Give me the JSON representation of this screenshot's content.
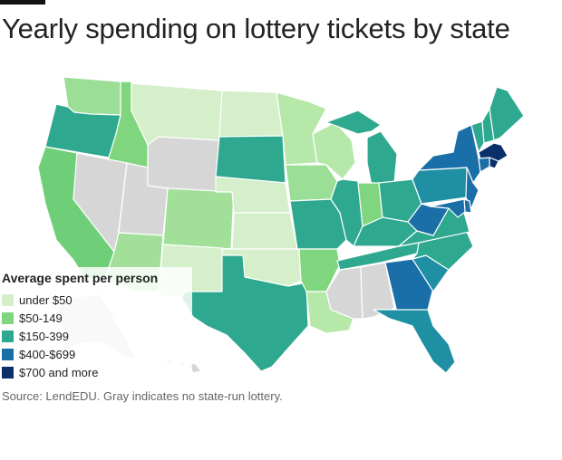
{
  "title": "Yearly spending on lottery tickets by state",
  "source": "Source: LendEDU. Gray indicates no state-run lottery.",
  "legend": {
    "title": "Average spent per person",
    "items": [
      {
        "label": "under $50",
        "color": "#d4efc9"
      },
      {
        "label": "$50-149",
        "color": "#7fd67f"
      },
      {
        "label": "$150-399",
        "color": "#2ea88f"
      },
      {
        "label": "$400-$699",
        "color": "#1a6fa8"
      },
      {
        "label": "$700 and more",
        "color": "#0b2f6b"
      }
    ]
  },
  "no_lottery_color": "#d6d6d6",
  "states": {
    "WA": "#9bde95",
    "OR": "#2ea88f",
    "CA": "#6fcf78",
    "ID": "#7fd67f",
    "NV": "#d6d6d6",
    "UT": "#d6d6d6",
    "AZ": "#a2e09a",
    "MT": "#d4efc9",
    "WY": "#d6d6d6",
    "CO": "#a2e09a",
    "NM": "#d4efc9",
    "ND": "#d4efc9",
    "SD": "#2ea88f",
    "NE": "#d4efc9",
    "KS": "#d4efc9",
    "OK": "#d4efc9",
    "TX": "#2ea88f",
    "MN": "#b6e8aa",
    "IA": "#9bde95",
    "MO": "#2ea88f",
    "AR": "#7fd67f",
    "LA": "#b6e8aa",
    "WI": "#b6e8aa",
    "IL": "#2ea88f",
    "MS": "#d6d6d6",
    "AL": "#d6d6d6",
    "MI": "#2ea88f",
    "IN": "#7fd67f",
    "KY": "#2ea88f",
    "TN": "#2ea88f",
    "OH": "#2ea88f",
    "GA": "#1a6fa8",
    "FL": "#1f8fa3",
    "SC": "#1f8fa3",
    "NC": "#2ea88f",
    "VA": "#2ea88f",
    "WV": "#1a6fa8",
    "PA": "#1f8fa3",
    "NY": "#1a6fa8",
    "ME": "#2ea88f",
    "VT": "#2ea88f",
    "NH": "#2ea88f",
    "MA": "#0b2f6b",
    "RI": "#0b2f6b",
    "CT": "#1a6fa8",
    "NJ": "#1a6fa8",
    "DE": "#1a6fa8",
    "MD": "#1a6fa8",
    "AK": "#d6d6d6",
    "HI": "#d6d6d6"
  }
}
